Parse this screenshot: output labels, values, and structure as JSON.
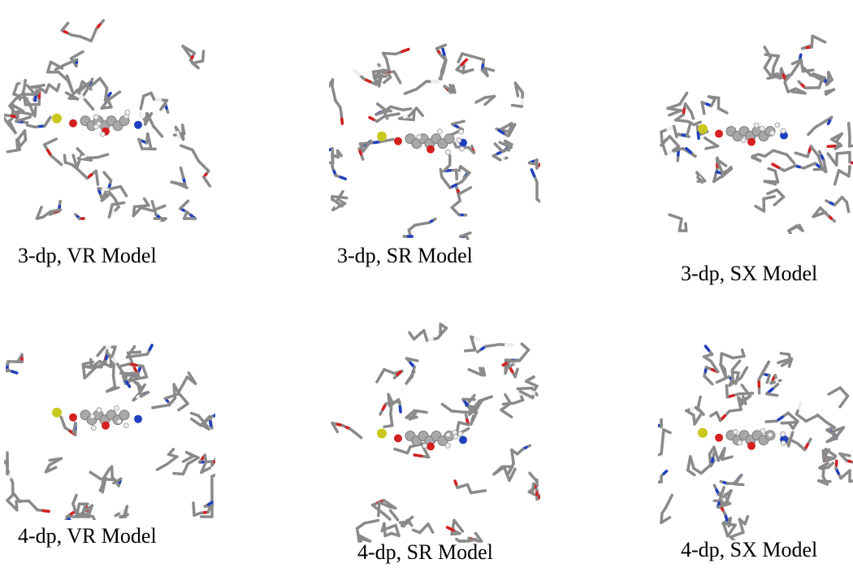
{
  "figure": {
    "panels": [
      {
        "caption": "3-dp, VR Model"
      },
      {
        "caption": "3-dp, SR Model"
      },
      {
        "caption": "3-dp, SX Model"
      },
      {
        "caption": "4-dp, VR Model"
      },
      {
        "caption": "4-dp, SR Model"
      },
      {
        "caption": "4-dp, SX Model"
      }
    ]
  }
}
